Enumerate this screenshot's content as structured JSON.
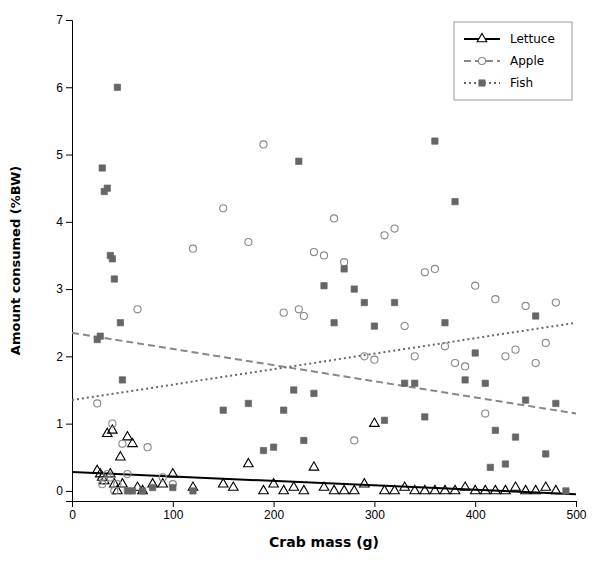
{
  "chart_data": {
    "type": "scatter",
    "xlabel": "Crab mass (g)",
    "ylabel": "Amount consumed (%BW)",
    "xlim": [
      0,
      500
    ],
    "ylim": [
      -0.15,
      7
    ],
    "xticks": [
      0,
      100,
      200,
      300,
      400,
      500
    ],
    "yticks": [
      0,
      1,
      2,
      3,
      4,
      5,
      6,
      7
    ],
    "grid": false,
    "legend": "upper right",
    "series": [
      {
        "name": "Lettuce",
        "color": "#000000",
        "marker": "triangle-open",
        "line_style": "solid",
        "x": [
          25,
          28,
          30,
          32,
          35,
          38,
          40,
          42,
          45,
          48,
          50,
          55,
          60,
          65,
          70,
          80,
          90,
          100,
          120,
          150,
          160,
          175,
          190,
          200,
          210,
          220,
          230,
          240,
          250,
          260,
          270,
          280,
          290,
          300,
          310,
          320,
          330,
          340,
          350,
          360,
          370,
          380,
          390,
          400,
          410,
          420,
          430,
          440,
          450,
          460,
          470,
          480
        ],
        "values": [
          0.3,
          0.25,
          0.2,
          0.15,
          0.85,
          0.25,
          0.9,
          0.1,
          0.0,
          0.5,
          0.1,
          0.8,
          0.7,
          0.05,
          0.0,
          0.1,
          0.1,
          0.25,
          0.05,
          0.1,
          0.05,
          0.4,
          0.0,
          0.1,
          0.0,
          0.05,
          0.0,
          0.35,
          0.05,
          0.0,
          0.0,
          0.0,
          0.1,
          1.0,
          0.0,
          0.0,
          0.05,
          0.0,
          0.0,
          0.0,
          0.0,
          0.0,
          0.05,
          0.0,
          0.0,
          0.0,
          0.0,
          0.05,
          0.0,
          0.0,
          0.05,
          0.0
        ],
        "trend_x": [
          0,
          500
        ],
        "trend_values": [
          0.28,
          -0.05
        ]
      },
      {
        "name": "Apple",
        "color": "#888888",
        "marker": "circle-open",
        "line_style": "dashed",
        "x": [
          25,
          30,
          32,
          35,
          38,
          40,
          42,
          45,
          50,
          55,
          65,
          75,
          90,
          100,
          120,
          150,
          175,
          190,
          210,
          225,
          230,
          240,
          250,
          260,
          270,
          280,
          290,
          300,
          310,
          320,
          330,
          340,
          350,
          360,
          370,
          380,
          390,
          400,
          410,
          420,
          430,
          440,
          450,
          460,
          470,
          480
        ],
        "values": [
          1.3,
          0.1,
          0.15,
          0.25,
          0.2,
          1.0,
          0.0,
          0.1,
          0.7,
          0.25,
          2.7,
          0.65,
          0.2,
          0.1,
          3.6,
          4.2,
          3.7,
          5.15,
          2.65,
          2.7,
          2.6,
          3.55,
          3.5,
          4.05,
          3.4,
          0.75,
          2.0,
          1.95,
          3.8,
          3.9,
          2.45,
          2.0,
          3.25,
          3.3,
          2.15,
          1.9,
          1.85,
          3.05,
          1.15,
          2.85,
          2.0,
          2.1,
          2.75,
          1.9,
          2.2,
          2.8
        ],
        "trend_x": [
          0,
          500
        ],
        "trend_values": [
          2.35,
          1.15
        ]
      },
      {
        "name": "Fish",
        "color": "#666666",
        "marker": "square",
        "line_style": "dotted",
        "x": [
          25,
          28,
          30,
          32,
          35,
          38,
          40,
          42,
          45,
          48,
          50,
          55,
          60,
          70,
          80,
          100,
          120,
          150,
          175,
          190,
          200,
          210,
          220,
          225,
          230,
          240,
          250,
          260,
          270,
          280,
          290,
          300,
          310,
          320,
          330,
          340,
          350,
          360,
          370,
          380,
          390,
          400,
          410,
          415,
          420,
          430,
          440,
          450,
          460,
          470,
          480,
          490
        ],
        "values": [
          2.25,
          2.3,
          4.8,
          4.45,
          4.5,
          3.5,
          3.45,
          3.15,
          6.0,
          2.5,
          1.65,
          0.0,
          0.0,
          0.0,
          0.05,
          0.05,
          0.0,
          1.2,
          1.3,
          0.6,
          0.65,
          1.2,
          1.5,
          4.9,
          0.75,
          1.45,
          3.05,
          2.5,
          3.3,
          3.0,
          2.8,
          2.45,
          1.05,
          2.8,
          1.6,
          1.6,
          1.1,
          5.2,
          2.5,
          4.3,
          1.65,
          2.05,
          1.6,
          0.35,
          0.9,
          0.4,
          0.8,
          1.35,
          2.6,
          0.55,
          1.3,
          0.0
        ],
        "trend_x": [
          0,
          500
        ],
        "trend_values": [
          1.35,
          2.5
        ]
      }
    ]
  }
}
